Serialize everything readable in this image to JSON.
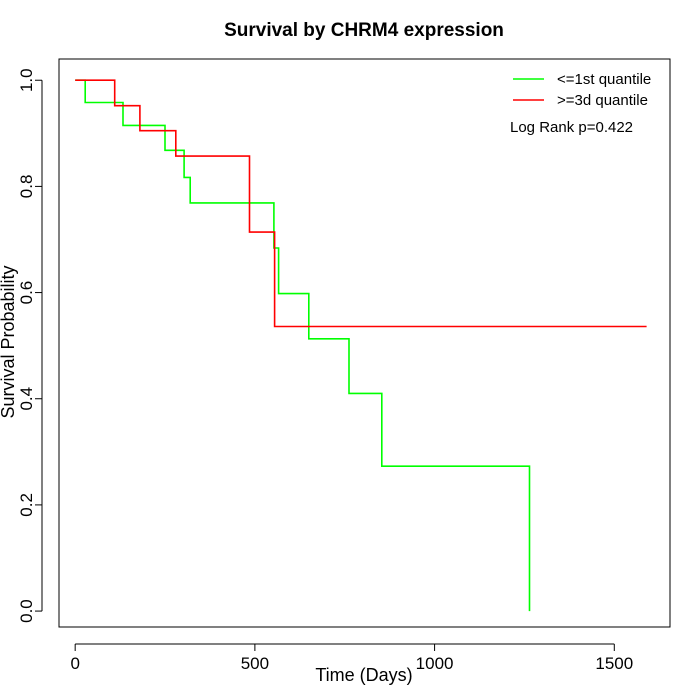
{
  "chart_data": {
    "type": "line",
    "title": "Survival by CHRM4 expression",
    "xlabel": "Time (Days)",
    "ylabel": "Survival Probability",
    "xlim": [
      -45,
      1655
    ],
    "ylim": [
      -0.03,
      1.04
    ],
    "xticks": [
      0,
      500,
      1000,
      1500
    ],
    "xtick_labels": [
      "0",
      "500",
      "1000",
      "1500"
    ],
    "yticks": [
      0.0,
      0.2,
      0.4,
      0.6,
      0.8,
      1.0
    ],
    "ytick_labels": [
      "0.0",
      "0.2",
      "0.4",
      "0.6",
      "0.8",
      "1.0"
    ],
    "grid": false,
    "legend_position": "top-right",
    "annotation": "Log Rank p=0.422",
    "series": [
      {
        "name": "<=1st quantile",
        "color": "#00ff00",
        "x": [
          0,
          28,
          28,
          133,
          133,
          250,
          250,
          303,
          303,
          320,
          320,
          553,
          553,
          566,
          566,
          650,
          650,
          762,
          762,
          853,
          853,
          1264,
          1264
        ],
        "y": [
          1.0,
          1.0,
          0.958,
          0.958,
          0.915,
          0.915,
          0.868,
          0.868,
          0.817,
          0.817,
          0.769,
          0.769,
          0.684,
          0.684,
          0.598,
          0.598,
          0.513,
          0.513,
          0.41,
          0.41,
          0.273,
          0.273,
          0.0
        ]
      },
      {
        "name": ">=3d quantile",
        "color": "#ff0000",
        "x": [
          0,
          110,
          110,
          180,
          180,
          280,
          280,
          485,
          485,
          555,
          555,
          1590
        ],
        "y": [
          1.0,
          1.0,
          0.952,
          0.952,
          0.905,
          0.905,
          0.857,
          0.857,
          0.714,
          0.714,
          0.536,
          0.536
        ]
      }
    ]
  }
}
